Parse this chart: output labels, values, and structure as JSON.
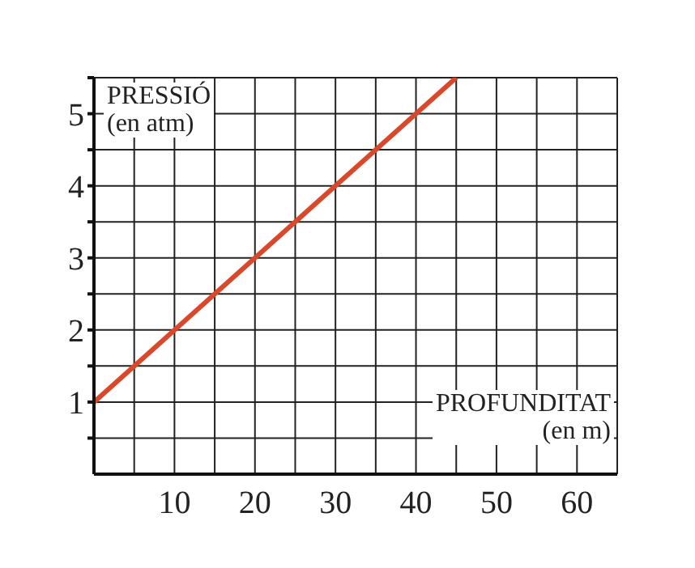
{
  "chart_data": {
    "type": "line",
    "xlabel": "PROFUNDITAT (en m)",
    "ylabel": "PRESSIÓ (en atm)",
    "x": [
      0,
      45
    ],
    "series": [
      {
        "color": "#d9482b",
        "values": [
          1,
          5.5
        ]
      }
    ],
    "xlim": [
      0,
      65
    ],
    "xticks": [
      {
        "value": 5,
        "label": null
      },
      10,
      {
        "value": 15,
        "label": null
      },
      20,
      {
        "value": 25,
        "label": null
      },
      30,
      {
        "value": 35,
        "label": null
      },
      40,
      {
        "value": 45,
        "label": null
      },
      50,
      {
        "value": 55,
        "label": null
      },
      60,
      {
        "value": 65,
        "label": null
      }
    ],
    "ylim": [
      0,
      5.5
    ],
    "yticks": [
      {
        "value": 0.5,
        "label": null
      },
      1,
      {
        "value": 1.5,
        "label": null
      },
      2,
      {
        "value": 2.5,
        "label": null
      },
      3,
      {
        "value": 3.5,
        "label": null
      },
      4,
      {
        "value": 4.5,
        "label": null
      },
      5,
      {
        "value": 5.5,
        "label": null
      }
    ],
    "grid": true,
    "marker": "none"
  }
}
